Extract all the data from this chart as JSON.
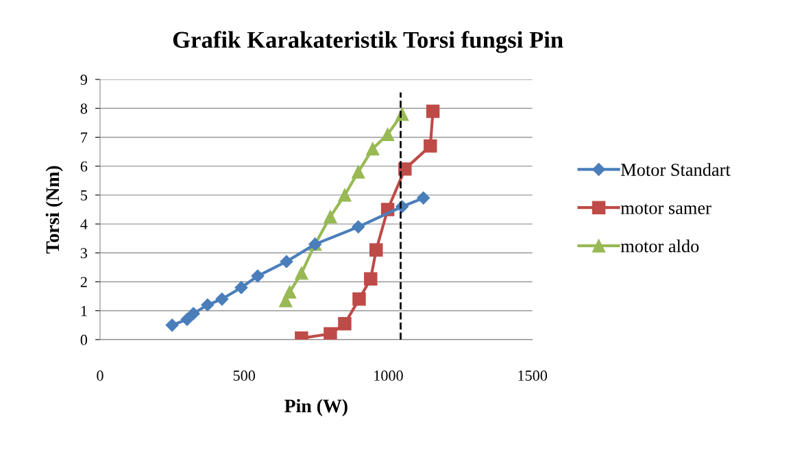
{
  "chart_data": {
    "type": "line",
    "title": "Grafik Karakateristik Torsi fungsi Pin",
    "xlabel": "Pin (W)",
    "ylabel": "Torsi (Nm)",
    "xlim": [
      0,
      1500
    ],
    "xticks": [
      0,
      500,
      1000,
      1500
    ],
    "ylim": [
      0,
      9
    ],
    "yticks": [
      0,
      1,
      2,
      3,
      4,
      5,
      6,
      7,
      8,
      9
    ],
    "grid": "y",
    "legend": "right",
    "line_style": "solid",
    "series": [
      {
        "name": "Motor Standart",
        "color": "#4a7ebb",
        "marker": "diamond",
        "x": [
          250,
          302,
          324,
          373,
          423,
          490,
          547,
          647,
          746,
          896,
          1048,
          1122
        ],
        "values": [
          0.5,
          0.7,
          0.9,
          1.2,
          1.4,
          1.8,
          2.2,
          2.7,
          3.3,
          3.9,
          4.6,
          4.9
        ]
      },
      {
        "name": "motor samer",
        "color": "#be4b48",
        "marker": "square",
        "x": [
          699,
          799,
          849,
          899,
          939,
          958,
          998,
          1058,
          1146,
          1155
        ],
        "values": [
          0.05,
          0.2,
          0.55,
          1.4,
          2.1,
          3.1,
          4.5,
          5.9,
          6.7,
          7.9
        ]
      },
      {
        "name": "motor aldo",
        "color": "#98b954",
        "marker": "triangle",
        "x": [
          644,
          658,
          699,
          746,
          799,
          849,
          896,
          946,
          998,
          1048
        ],
        "values": [
          1.35,
          1.65,
          2.3,
          3.3,
          4.25,
          5.0,
          5.8,
          6.6,
          7.1,
          7.8
        ]
      }
    ],
    "ref_lines": [
      {
        "axis": "x",
        "value": 1043,
        "color": "#000000",
        "line_style": "dashed"
      }
    ]
  }
}
